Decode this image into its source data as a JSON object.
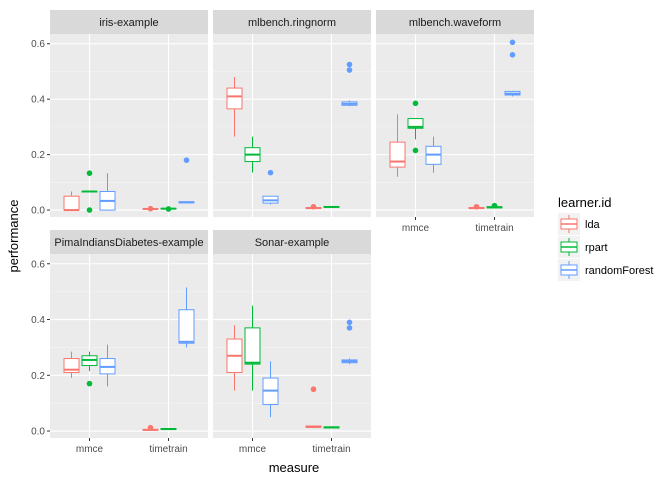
{
  "chart_data": {
    "type": "boxplot",
    "xlabel": "measure",
    "ylabel": "performance",
    "categories": [
      "mmce",
      "timetrain"
    ],
    "y_ticks": [
      0.0,
      0.2,
      0.4,
      0.6
    ],
    "y_tick_labels": [
      "0.0",
      "0.2",
      "0.4",
      "0.6"
    ],
    "ylim": [
      -0.025,
      0.635
    ],
    "grid": true,
    "legend": {
      "title": "learner.id",
      "position": "right",
      "entries": [
        {
          "name": "lda",
          "color": "#F8766D"
        },
        {
          "name": "rpart",
          "color": "#00BA38"
        },
        {
          "name": "randomForest",
          "color": "#619CFF"
        }
      ]
    },
    "panels": [
      {
        "title": "iris-example",
        "boxes": [
          {
            "category": "mmce",
            "learner": "lda",
            "q1": 0.0,
            "median": 0.0,
            "q3": 0.05,
            "whisker_low": 0.0,
            "whisker_high": 0.067,
            "outliers": []
          },
          {
            "category": "mmce",
            "learner": "rpart",
            "q1": 0.067,
            "median": 0.067,
            "q3": 0.067,
            "whisker_low": 0.067,
            "whisker_high": 0.067,
            "outliers": [
              0.133,
              0.0
            ]
          },
          {
            "category": "mmce",
            "learner": "randomForest",
            "q1": 0.0,
            "median": 0.033,
            "q3": 0.067,
            "whisker_low": 0.0,
            "whisker_high": 0.133,
            "outliers": []
          },
          {
            "category": "timetrain",
            "learner": "lda",
            "q1": 0.003,
            "median": 0.004,
            "q3": 0.005,
            "whisker_low": 0.002,
            "whisker_high": 0.006,
            "outliers": [
              0.005
            ]
          },
          {
            "category": "timetrain",
            "learner": "rpart",
            "q1": 0.004,
            "median": 0.005,
            "q3": 0.006,
            "whisker_low": 0.003,
            "whisker_high": 0.007,
            "outliers": [
              0.004
            ]
          },
          {
            "category": "timetrain",
            "learner": "randomForest",
            "q1": 0.026,
            "median": 0.028,
            "q3": 0.03,
            "whisker_low": 0.025,
            "whisker_high": 0.031,
            "outliers": [
              0.18
            ]
          }
        ]
      },
      {
        "title": "mlbench.ringnorm",
        "boxes": [
          {
            "category": "mmce",
            "learner": "lda",
            "q1": 0.365,
            "median": 0.41,
            "q3": 0.44,
            "whisker_low": 0.265,
            "whisker_high": 0.48,
            "outliers": []
          },
          {
            "category": "mmce",
            "learner": "rpart",
            "q1": 0.175,
            "median": 0.2,
            "q3": 0.225,
            "whisker_low": 0.135,
            "whisker_high": 0.265,
            "outliers": []
          },
          {
            "category": "mmce",
            "learner": "randomForest",
            "q1": 0.025,
            "median": 0.035,
            "q3": 0.05,
            "whisker_low": 0.02,
            "whisker_high": 0.05,
            "outliers": [
              0.135
            ]
          },
          {
            "category": "timetrain",
            "learner": "lda",
            "q1": 0.006,
            "median": 0.007,
            "q3": 0.009,
            "whisker_low": 0.005,
            "whisker_high": 0.01,
            "outliers": [
              0.012
            ]
          },
          {
            "category": "timetrain",
            "learner": "rpart",
            "q1": 0.01,
            "median": 0.011,
            "q3": 0.013,
            "whisker_low": 0.009,
            "whisker_high": 0.014,
            "outliers": []
          },
          {
            "category": "timetrain",
            "learner": "randomForest",
            "q1": 0.378,
            "median": 0.383,
            "q3": 0.39,
            "whisker_low": 0.375,
            "whisker_high": 0.395,
            "outliers": [
              0.525,
              0.505
            ]
          }
        ]
      },
      {
        "title": "mlbench.waveform",
        "boxes": [
          {
            "category": "mmce",
            "learner": "lda",
            "q1": 0.155,
            "median": 0.175,
            "q3": 0.245,
            "whisker_low": 0.12,
            "whisker_high": 0.345,
            "outliers": []
          },
          {
            "category": "mmce",
            "learner": "rpart",
            "q1": 0.295,
            "median": 0.3,
            "q3": 0.33,
            "whisker_low": 0.255,
            "whisker_high": 0.33,
            "outliers": [
              0.385,
              0.215
            ]
          },
          {
            "category": "mmce",
            "learner": "randomForest",
            "q1": 0.165,
            "median": 0.2,
            "q3": 0.23,
            "whisker_low": 0.135,
            "whisker_high": 0.265,
            "outliers": []
          },
          {
            "category": "timetrain",
            "learner": "lda",
            "q1": 0.006,
            "median": 0.007,
            "q3": 0.009,
            "whisker_low": 0.004,
            "whisker_high": 0.01,
            "outliers": [
              0.012
            ]
          },
          {
            "category": "timetrain",
            "learner": "rpart",
            "q1": 0.008,
            "median": 0.01,
            "q3": 0.012,
            "whisker_low": 0.007,
            "whisker_high": 0.013,
            "outliers": [
              0.016
            ]
          },
          {
            "category": "timetrain",
            "learner": "randomForest",
            "q1": 0.415,
            "median": 0.42,
            "q3": 0.428,
            "whisker_low": 0.41,
            "whisker_high": 0.43,
            "outliers": [
              0.605,
              0.56
            ]
          }
        ]
      },
      {
        "title": "PimaIndiansDiabetes-example",
        "boxes": [
          {
            "category": "mmce",
            "learner": "lda",
            "q1": 0.21,
            "median": 0.22,
            "q3": 0.26,
            "whisker_low": 0.19,
            "whisker_high": 0.285,
            "outliers": []
          },
          {
            "category": "mmce",
            "learner": "rpart",
            "q1": 0.235,
            "median": 0.255,
            "q3": 0.27,
            "whisker_low": 0.215,
            "whisker_high": 0.285,
            "outliers": [
              0.17
            ]
          },
          {
            "category": "mmce",
            "learner": "randomForest",
            "q1": 0.205,
            "median": 0.23,
            "q3": 0.26,
            "whisker_low": 0.16,
            "whisker_high": 0.31,
            "outliers": []
          },
          {
            "category": "timetrain",
            "learner": "lda",
            "q1": 0.003,
            "median": 0.004,
            "q3": 0.006,
            "whisker_low": 0.002,
            "whisker_high": 0.008,
            "outliers": [
              0.012
            ]
          },
          {
            "category": "timetrain",
            "learner": "rpart",
            "q1": 0.006,
            "median": 0.007,
            "q3": 0.009,
            "whisker_low": 0.005,
            "whisker_high": 0.01,
            "outliers": []
          },
          {
            "category": "timetrain",
            "learner": "randomForest",
            "q1": 0.315,
            "median": 0.32,
            "q3": 0.435,
            "whisker_low": 0.3,
            "whisker_high": 0.515,
            "outliers": []
          }
        ]
      },
      {
        "title": "Sonar-example",
        "boxes": [
          {
            "category": "mmce",
            "learner": "lda",
            "q1": 0.21,
            "median": 0.27,
            "q3": 0.33,
            "whisker_low": 0.145,
            "whisker_high": 0.38,
            "outliers": []
          },
          {
            "category": "mmce",
            "learner": "rpart",
            "q1": 0.24,
            "median": 0.245,
            "q3": 0.37,
            "whisker_low": 0.145,
            "whisker_high": 0.45,
            "outliers": []
          },
          {
            "category": "mmce",
            "learner": "randomForest",
            "q1": 0.095,
            "median": 0.145,
            "q3": 0.19,
            "whisker_low": 0.05,
            "whisker_high": 0.25,
            "outliers": []
          },
          {
            "category": "timetrain",
            "learner": "lda",
            "q1": 0.013,
            "median": 0.015,
            "q3": 0.018,
            "whisker_low": 0.012,
            "whisker_high": 0.02,
            "outliers": [
              0.15
            ]
          },
          {
            "category": "timetrain",
            "learner": "rpart",
            "q1": 0.011,
            "median": 0.013,
            "q3": 0.015,
            "whisker_low": 0.01,
            "whisker_high": 0.016,
            "outliers": []
          },
          {
            "category": "timetrain",
            "learner": "randomForest",
            "q1": 0.245,
            "median": 0.25,
            "q3": 0.255,
            "whisker_low": 0.24,
            "whisker_high": 0.26,
            "outliers": [
              0.39,
              0.37
            ]
          }
        ]
      }
    ]
  }
}
